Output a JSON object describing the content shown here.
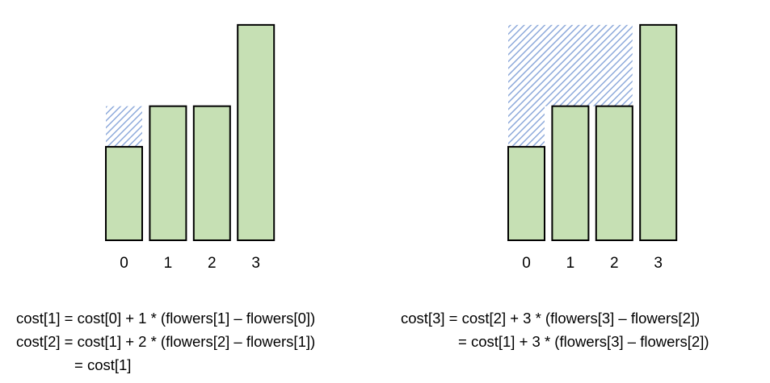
{
  "colors": {
    "bar_fill": "#c6e0b4",
    "bar_stroke": "#000000",
    "hatch": "#8eaadb",
    "background": "#ffffff"
  },
  "panels": [
    {
      "id": "left",
      "bars": [
        {
          "index_label": "0",
          "height": 2.3,
          "hatch_top": 3.3
        },
        {
          "index_label": "1",
          "height": 3.3
        },
        {
          "index_label": "2",
          "height": 3.3
        },
        {
          "index_label": "3",
          "height": 5.3
        }
      ]
    },
    {
      "id": "right",
      "bars": [
        {
          "index_label": "0",
          "height": 2.3,
          "hatch_top": 3.3
        },
        {
          "index_label": "1",
          "height": 3.3
        },
        {
          "index_label": "2",
          "height": 3.3
        },
        {
          "index_label": "3",
          "height": 5.3
        }
      ],
      "hatch_band": {
        "from_bar": 0,
        "to_bar": 2,
        "bottom": 3.3,
        "top": 5.3
      }
    }
  ],
  "formulas": {
    "left": [
      "cost[1] = cost[0] + 1 * (flowers[1] – flowers[0])",
      "cost[2] = cost[1] + 2 * (flowers[2] – flowers[1])",
      "= cost[1]"
    ],
    "right": [
      "cost[3] = cost[2] + 3 * (flowers[3] – flowers[2])",
      "= cost[1] + 3 * (flowers[3] – flowers[2])"
    ]
  }
}
